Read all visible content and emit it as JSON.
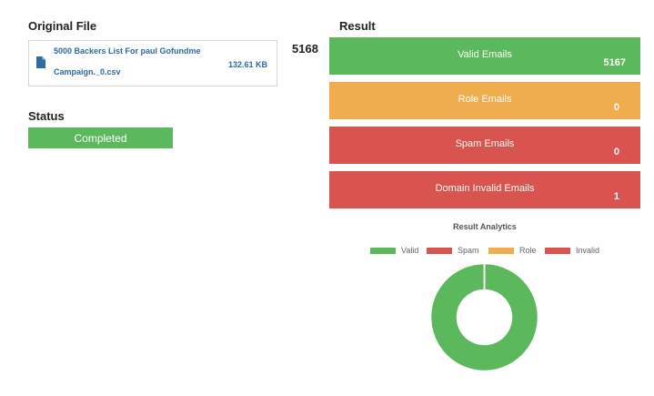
{
  "original_file": {
    "heading": "Original File",
    "file_name_line1": "5000 Backers List For paul Gofundme",
    "file_name_line2": "Campaign._0.csv",
    "file_size": "132.61 KB"
  },
  "status": {
    "heading": "Status",
    "value": "Completed"
  },
  "total_count": "5168",
  "result": {
    "heading": "Result",
    "cards": [
      {
        "label": "Valid Emails",
        "count": "5167",
        "color": "#5cb85c"
      },
      {
        "label": "Role Emails",
        "count": "0",
        "color": "#f0ad4e"
      },
      {
        "label": "Spam Emails",
        "count": "0",
        "color": "#d9534f"
      },
      {
        "label": "Domain Invalid Emails",
        "count": "1",
        "color": "#d9534f"
      }
    ]
  },
  "chart_data": {
    "type": "pie",
    "title": "Result Analytics",
    "categories": [
      "Valid",
      "Spam",
      "Role",
      "Invalid"
    ],
    "values": [
      5167,
      0,
      0,
      1
    ],
    "colors": [
      "#5cb85c",
      "#d9534f",
      "#f0ad4e",
      "#d9534f"
    ],
    "legend_position": "top"
  }
}
